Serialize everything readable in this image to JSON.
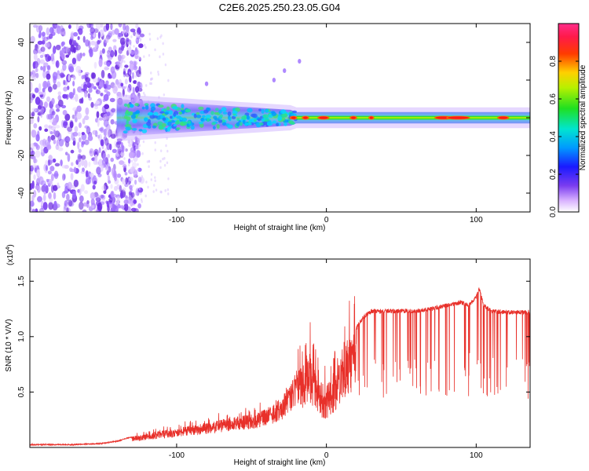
{
  "title": "C2E6.2025.250.23.05.G04",
  "colors": {
    "snr_line": "#e8302a",
    "spec_low": "#7a3cf0",
    "spec_mid": "#1f8cff",
    "spec_high": "#ff2020"
  },
  "chart_data": [
    {
      "type": "heatmap",
      "name": "spectrogram",
      "title": "",
      "xlabel": "Height of straight line (km)",
      "ylabel": "Frequency (Hz)",
      "xlim": [
        -198,
        136
      ],
      "ylim": [
        -50,
        50
      ],
      "xticks": [
        -100,
        0,
        100
      ],
      "yticks": [
        -40,
        -20,
        0,
        20,
        40
      ],
      "colorbar": {
        "label": "Normalized spectral amplitude",
        "range": [
          0.0,
          1.0
        ],
        "ticks": [
          0.0,
          0.2,
          0.4,
          0.6,
          0.8
        ]
      },
      "regions": [
        {
          "x_range": [
            -198,
            -130
          ],
          "freq_range": [
            -50,
            50
          ],
          "amplitude": 0.1,
          "description": "diffuse noise"
        },
        {
          "x_range": [
            -140,
            -20
          ],
          "freq_range": [
            -10,
            10
          ],
          "amplitude": 0.3
        },
        {
          "x_range": [
            -20,
            136
          ],
          "freq_range": [
            -3,
            3
          ],
          "amplitude": 0.55
        },
        {
          "x_range": [
            -25,
            0
          ],
          "freq_range": [
            -1,
            1
          ],
          "amplitude": 0.9
        },
        {
          "x_range": [
            75,
            100
          ],
          "freq_range": [
            -1,
            1
          ],
          "amplitude": 0.9
        },
        {
          "x_range": [
            115,
            125
          ],
          "freq_range": [
            -1,
            1
          ],
          "amplitude": 0.85
        }
      ]
    },
    {
      "type": "line",
      "name": "snr",
      "title": "",
      "xlabel": "Height of straight line (km)",
      "ylabel": "SNR (10 * V/V)",
      "y_scale_label": "(x10",
      "y_scale_exponent": "4",
      "y_scale_close": ")",
      "xlim": [
        -198,
        136
      ],
      "ylim": [
        0,
        1.7
      ],
      "xticks": [
        -100,
        0,
        100
      ],
      "yticks": [
        0.5,
        1.0,
        1.5
      ],
      "ytick_labels": [
        "0.5",
        "1.0",
        "1.5"
      ],
      "series": [
        {
          "name": "SNR",
          "x": [
            -198,
            -170,
            -150,
            -140,
            -130,
            -120,
            -110,
            -100,
            -90,
            -80,
            -70,
            -60,
            -50,
            -40,
            -30,
            -25,
            -20,
            -15,
            -12,
            -10,
            -8,
            -5,
            0,
            5,
            8,
            10,
            15,
            20,
            25,
            30,
            40,
            50,
            60,
            70,
            80,
            90,
            95,
            100,
            102,
            105,
            110,
            120,
            130,
            136
          ],
          "y": [
            0.03,
            0.03,
            0.04,
            0.06,
            0.1,
            0.12,
            0.15,
            0.17,
            0.2,
            0.22,
            0.25,
            0.28,
            0.3,
            0.35,
            0.45,
            0.55,
            0.7,
            0.8,
            0.9,
            0.85,
            0.7,
            0.6,
            0.55,
            0.7,
            0.85,
            0.9,
            1.0,
            1.1,
            1.2,
            1.25,
            1.25,
            1.25,
            1.25,
            1.27,
            1.3,
            1.33,
            1.3,
            1.38,
            1.45,
            1.3,
            1.25,
            1.24,
            1.24,
            1.24
          ]
        }
      ]
    }
  ]
}
